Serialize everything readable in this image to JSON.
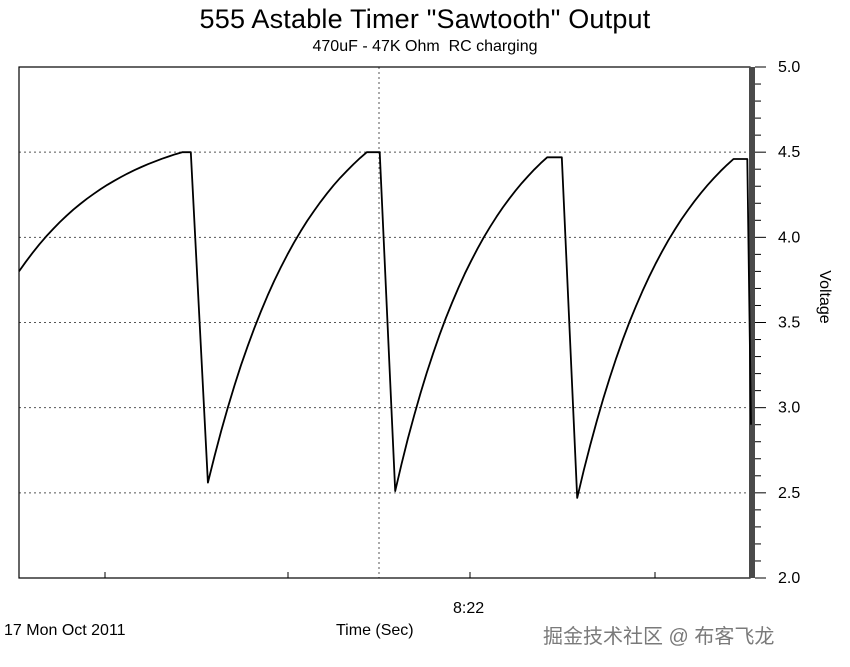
{
  "chart_data": {
    "type": "line",
    "title": "555 Astable Timer \"Sawtooth\" Output",
    "subtitle": "470uF - 47K Ohm  RC charging",
    "xlabel": "Time (Sec)",
    "ylabel": "Voltage",
    "date_label": "17 Mon Oct 2011",
    "time_tick_label": "8:22",
    "ylim": [
      2.0,
      5.0
    ],
    "yticks": [
      2.0,
      2.5,
      3.0,
      3.5,
      4.0,
      4.5,
      5.0
    ],
    "ytick_labels": [
      "2.0",
      "2.5",
      "3.0",
      "3.5",
      "4.0",
      "4.5",
      "5.0"
    ],
    "grid": true,
    "line_color": "#000000",
    "grid_color": "#555555",
    "series": [
      {
        "x": [
          0,
          1.9,
          2.0,
          2.2,
          4.05,
          4.2,
          4.38,
          6.15,
          6.32,
          6.5,
          8.32,
          8.48
        ],
        "values": [
          3.8,
          4.5,
          4.5,
          2.56,
          4.5,
          4.5,
          2.51,
          4.47,
          4.47,
          2.47,
          4.46,
          4.46
        ]
      }
    ]
  },
  "watermark": "掘金技术社区 @ 布客飞龙"
}
